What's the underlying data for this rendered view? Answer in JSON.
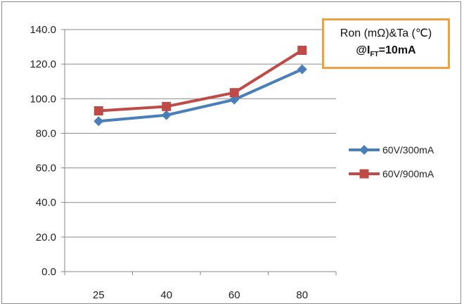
{
  "chart_data": {
    "type": "line",
    "title_line1": "Ron (mΩ)&Ta (℃)",
    "title_line2_prefix": "@I",
    "title_line2_sub": "FT",
    "title_line2_suffix": "=10mA",
    "categories": [
      "25",
      "40",
      "60",
      "80"
    ],
    "y_ticks": [
      "0.0",
      "20.0",
      "40.0",
      "60.0",
      "80.0",
      "100.0",
      "120.0",
      "140.0"
    ],
    "ylim": [
      0,
      140
    ],
    "grid": true,
    "legend_position": "right",
    "series": [
      {
        "name": "60V/300mA",
        "values": [
          87.0,
          90.5,
          99.5,
          117.0
        ],
        "color": "#4a7ebb",
        "marker": "diamond"
      },
      {
        "name": "60V/900mA",
        "values": [
          93.0,
          95.5,
          103.5,
          128.0
        ],
        "color": "#be4b48",
        "marker": "square"
      }
    ]
  }
}
